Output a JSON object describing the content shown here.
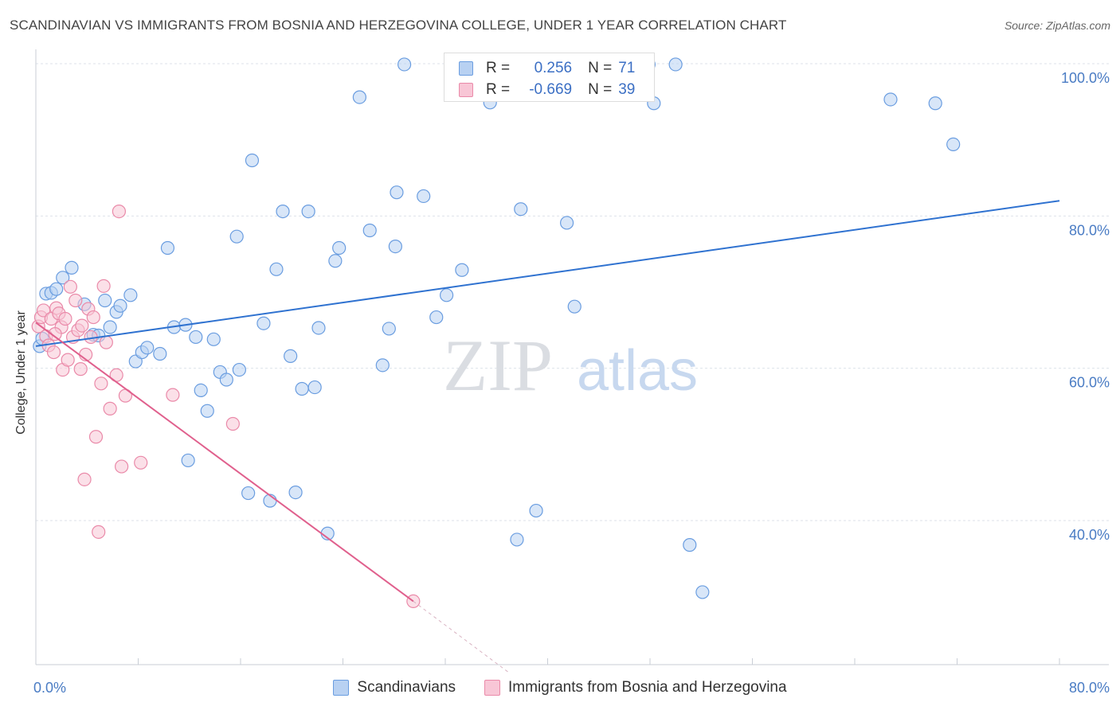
{
  "title": "SCANDINAVIAN VS IMMIGRANTS FROM BOSNIA AND HERZEGOVINA COLLEGE, UNDER 1 YEAR CORRELATION CHART",
  "source": "Source: ZipAtlas.com",
  "watermark": {
    "zip": "ZIP",
    "atlas": "atlas"
  },
  "legend": {
    "r_label": "R =",
    "n_label": "N =",
    "rows": [
      {
        "r": "0.256",
        "n": "71"
      },
      {
        "r": "-0.669",
        "n": "39"
      }
    ]
  },
  "colors": {
    "blue_fill": "#b8d1f2",
    "blue_stroke": "#6a9de0",
    "blue_line": "#2f72d0",
    "pink_fill": "#f8c6d6",
    "pink_stroke": "#ea8aa9",
    "pink_line": "#e0608d",
    "grid": "#dde2ea",
    "tick_text": "#4a7cc4"
  },
  "chart_data": {
    "type": "scatter",
    "title": "SCANDINAVIAN VS IMMIGRANTS FROM BOSNIA AND HERZEGOVINA COLLEGE, UNDER 1 YEAR CORRELATION CHART",
    "xlabel": "",
    "ylabel": "College, Under 1 year",
    "xlim": [
      0,
      80
    ],
    "ylim": [
      20,
      102
    ],
    "x_tick_labels": [
      "0.0%",
      "80.0%"
    ],
    "y_ticks": [
      {
        "value": 100,
        "label": "100.0%"
      },
      {
        "value": 80,
        "label": "80.0%"
      },
      {
        "value": 60,
        "label": "60.0%"
      },
      {
        "value": 40,
        "label": "40.0%"
      }
    ],
    "series": [
      {
        "name": "Scandinavians",
        "r": 0.256,
        "n": 71,
        "trend": {
          "x1": 0,
          "y1": 62.9,
          "x2": 80,
          "y2": 82.0
        },
        "points": [
          [
            0.3,
            62.9
          ],
          [
            0.5,
            63.9
          ],
          [
            0.8,
            69.8
          ],
          [
            1.2,
            69.9
          ],
          [
            1.6,
            70.4
          ],
          [
            2.1,
            71.9
          ],
          [
            2.8,
            73.2
          ],
          [
            3.8,
            68.4
          ],
          [
            4.5,
            64.4
          ],
          [
            4.9,
            64.3
          ],
          [
            5.4,
            68.9
          ],
          [
            5.8,
            65.4
          ],
          [
            6.3,
            67.4
          ],
          [
            6.6,
            68.2
          ],
          [
            7.4,
            69.6
          ],
          [
            7.8,
            60.9
          ],
          [
            8.3,
            62.1
          ],
          [
            8.7,
            62.7
          ],
          [
            9.7,
            61.9
          ],
          [
            10.3,
            75.8
          ],
          [
            10.8,
            65.4
          ],
          [
            11.7,
            65.7
          ],
          [
            11.9,
            47.9
          ],
          [
            12.5,
            64.1
          ],
          [
            12.9,
            57.1
          ],
          [
            13.4,
            54.4
          ],
          [
            13.9,
            63.8
          ],
          [
            14.4,
            59.5
          ],
          [
            14.9,
            58.5
          ],
          [
            15.7,
            77.3
          ],
          [
            15.9,
            59.8
          ],
          [
            16.6,
            43.6
          ],
          [
            16.9,
            87.3
          ],
          [
            17.8,
            65.9
          ],
          [
            18.3,
            42.6
          ],
          [
            18.8,
            73.0
          ],
          [
            19.3,
            80.6
          ],
          [
            19.9,
            61.6
          ],
          [
            20.3,
            43.7
          ],
          [
            20.8,
            57.3
          ],
          [
            21.3,
            80.6
          ],
          [
            21.8,
            57.5
          ],
          [
            22.1,
            65.3
          ],
          [
            22.8,
            38.3
          ],
          [
            23.4,
            74.1
          ],
          [
            23.7,
            75.8
          ],
          [
            25.3,
            95.6
          ],
          [
            26.1,
            78.1
          ],
          [
            27.1,
            60.4
          ],
          [
            27.6,
            65.2
          ],
          [
            28.1,
            76.0
          ],
          [
            28.2,
            83.1
          ],
          [
            28.8,
            99.9
          ],
          [
            30.3,
            82.6
          ],
          [
            31.3,
            66.7
          ],
          [
            32.1,
            69.6
          ],
          [
            33.3,
            72.9
          ],
          [
            35.5,
            94.9
          ],
          [
            37.6,
            37.5
          ],
          [
            37.9,
            80.9
          ],
          [
            39.1,
            41.3
          ],
          [
            41.5,
            79.1
          ],
          [
            42.1,
            68.1
          ],
          [
            47.9,
            99.9
          ],
          [
            48.3,
            94.8
          ],
          [
            51.1,
            36.8
          ],
          [
            52.1,
            30.6
          ],
          [
            66.8,
            95.3
          ],
          [
            70.3,
            94.8
          ],
          [
            71.7,
            89.4
          ],
          [
            50.0,
            99.9
          ]
        ]
      },
      {
        "name": "Immigrants from Bosnia and Herzegovina",
        "r": -0.669,
        "n": 39,
        "trend": {
          "x1": 0,
          "y1": 66.0,
          "x2": 29.5,
          "y2": 29.4,
          "dash_x2": 37.0,
          "dash_y2": 20.0
        },
        "points": [
          [
            0.2,
            65.5
          ],
          [
            0.4,
            66.7
          ],
          [
            0.6,
            67.6
          ],
          [
            0.8,
            64.2
          ],
          [
            1.0,
            63.0
          ],
          [
            1.2,
            66.5
          ],
          [
            1.4,
            62.1
          ],
          [
            1.6,
            67.9
          ],
          [
            1.8,
            67.2
          ],
          [
            2.0,
            65.4
          ],
          [
            2.1,
            59.8
          ],
          [
            2.3,
            66.5
          ],
          [
            2.5,
            61.1
          ],
          [
            2.7,
            70.7
          ],
          [
            2.9,
            64.1
          ],
          [
            3.1,
            68.9
          ],
          [
            3.3,
            65.0
          ],
          [
            3.5,
            59.9
          ],
          [
            3.6,
            65.6
          ],
          [
            3.8,
            45.4
          ],
          [
            3.9,
            61.8
          ],
          [
            4.1,
            67.8
          ],
          [
            4.3,
            64.1
          ],
          [
            4.5,
            66.7
          ],
          [
            4.7,
            51.0
          ],
          [
            4.9,
            38.5
          ],
          [
            5.1,
            58.0
          ],
          [
            5.3,
            70.8
          ],
          [
            5.5,
            63.4
          ],
          [
            5.8,
            54.7
          ],
          [
            6.3,
            59.1
          ],
          [
            6.5,
            80.6
          ],
          [
            6.7,
            47.1
          ],
          [
            7.0,
            56.4
          ],
          [
            8.2,
            47.6
          ],
          [
            10.7,
            56.5
          ],
          [
            15.4,
            52.7
          ],
          [
            29.5,
            29.4
          ],
          [
            1.5,
            64.5
          ]
        ]
      }
    ]
  }
}
